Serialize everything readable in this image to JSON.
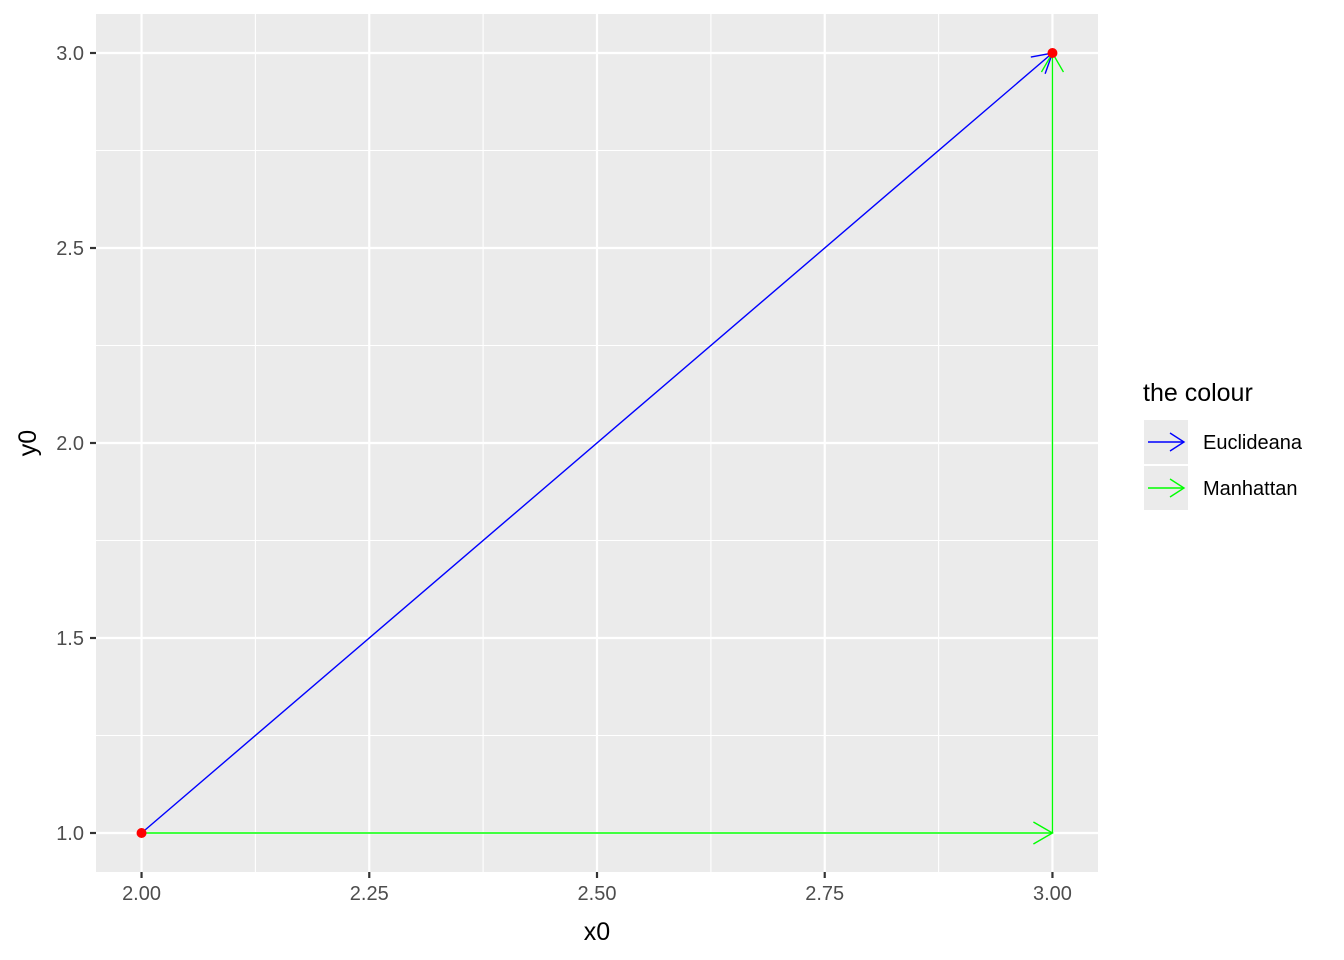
{
  "chart_data": {
    "type": "line",
    "xlabel": "x0",
    "ylabel": "y0",
    "xlim": [
      1.95,
      3.05
    ],
    "ylim": [
      0.9,
      3.1
    ],
    "x_ticks": [
      2.0,
      2.25,
      2.5,
      2.75,
      3.0
    ],
    "x_tick_labels": [
      "2.00",
      "2.25",
      "2.50",
      "2.75",
      "3.00"
    ],
    "y_ticks": [
      1.0,
      1.5,
      2.0,
      2.5,
      3.0
    ],
    "y_tick_labels": [
      "1.0",
      "1.5",
      "2.0",
      "2.5",
      "3.0"
    ],
    "grid": true,
    "legend": {
      "title": "the colour",
      "position": "right",
      "entries": [
        {
          "label": "Euclideana",
          "color": "#0000ff"
        },
        {
          "label": "Manhattan",
          "color": "#00ff00"
        }
      ]
    },
    "segments": [
      {
        "series": "Euclideana",
        "color": "#0000ff",
        "x0": 2.0,
        "y0": 1.0,
        "x1": 3.0,
        "y1": 3.0
      },
      {
        "series": "Manhattan",
        "color": "#00ff00",
        "x0": 2.0,
        "y0": 1.0,
        "x1": 3.0,
        "y1": 1.0
      },
      {
        "series": "Manhattan",
        "color": "#00ff00",
        "x0": 3.0,
        "y0": 1.0,
        "x1": 3.0,
        "y1": 3.0
      }
    ],
    "points": [
      {
        "x": 2.0,
        "y": 1.0,
        "color": "#ff0000"
      },
      {
        "x": 3.0,
        "y": 3.0,
        "color": "#ff0000"
      }
    ],
    "panel_color": "#ebebeb",
    "grid_color": "#ffffff"
  }
}
